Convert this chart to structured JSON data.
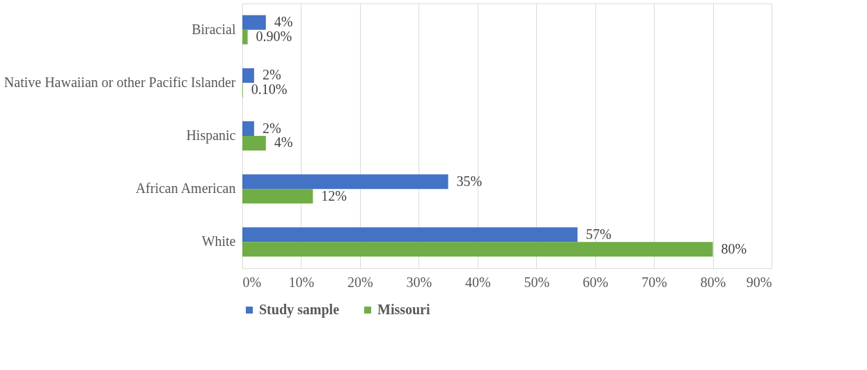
{
  "chart_data": {
    "type": "bar",
    "orientation": "horizontal",
    "categories": [
      "Biracial",
      "Native Hawaiian or other Pacific Islander",
      "Hispanic",
      "African American",
      "White"
    ],
    "series": [
      {
        "name": "Study sample",
        "color": "#4472c4",
        "values": [
          4,
          2,
          2,
          35,
          57
        ],
        "value_labels": [
          "4%",
          "2%",
          "2%",
          "35%",
          "57%"
        ]
      },
      {
        "name": "Missouri",
        "color": "#70ad47",
        "values": [
          0.9,
          0.1,
          4,
          12,
          80
        ],
        "value_labels": [
          "0.90%",
          "0.10%",
          "4%",
          "12%",
          "80%"
        ]
      }
    ],
    "xlim": [
      0,
      90
    ],
    "xticks": [
      {
        "value": 0,
        "label": "0%"
      },
      {
        "value": 10,
        "label": "10%"
      },
      {
        "value": 20,
        "label": "20%"
      },
      {
        "value": 30,
        "label": "30%"
      },
      {
        "value": 40,
        "label": "40%"
      },
      {
        "value": 50,
        "label": "50%"
      },
      {
        "value": 60,
        "label": "60%"
      },
      {
        "value": 70,
        "label": "70%"
      },
      {
        "value": 80,
        "label": "80%"
      },
      {
        "value": 90,
        "label": "90%"
      }
    ],
    "grid": "x",
    "legend": "bottom"
  }
}
